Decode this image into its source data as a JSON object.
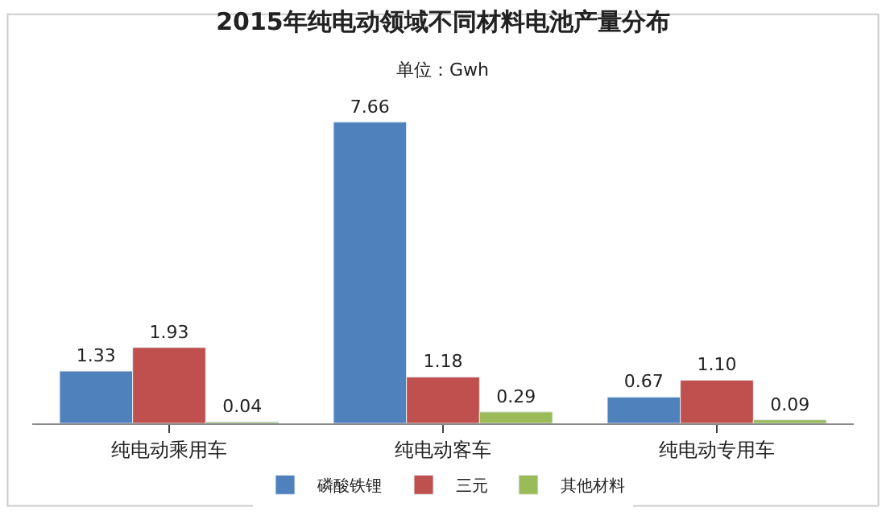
{
  "chart_data": {
    "type": "bar",
    "title": "2015年纯电动领域不同材料电池产量分布",
    "subtitle": "单位：Gwh",
    "categories": [
      "纯电动乘用车",
      "纯电动客车",
      "纯电动专用车"
    ],
    "series": [
      {
        "name": "磷酸铁锂",
        "color": "#4f81bd",
        "values": [
          1.33,
          7.66,
          0.67
        ],
        "value_labels": [
          "1.33",
          "7.66",
          "0.67"
        ]
      },
      {
        "name": "三元",
        "color": "#c0504d",
        "values": [
          1.93,
          1.18,
          1.1
        ],
        "value_labels": [
          "1.93",
          "1.18",
          "1.10"
        ]
      },
      {
        "name": "其他材料",
        "color": "#9bbb59",
        "values": [
          0.04,
          0.29,
          0.09
        ],
        "value_labels": [
          "0.04",
          "0.29",
          "0.09"
        ]
      }
    ],
    "legend": "bottom"
  }
}
